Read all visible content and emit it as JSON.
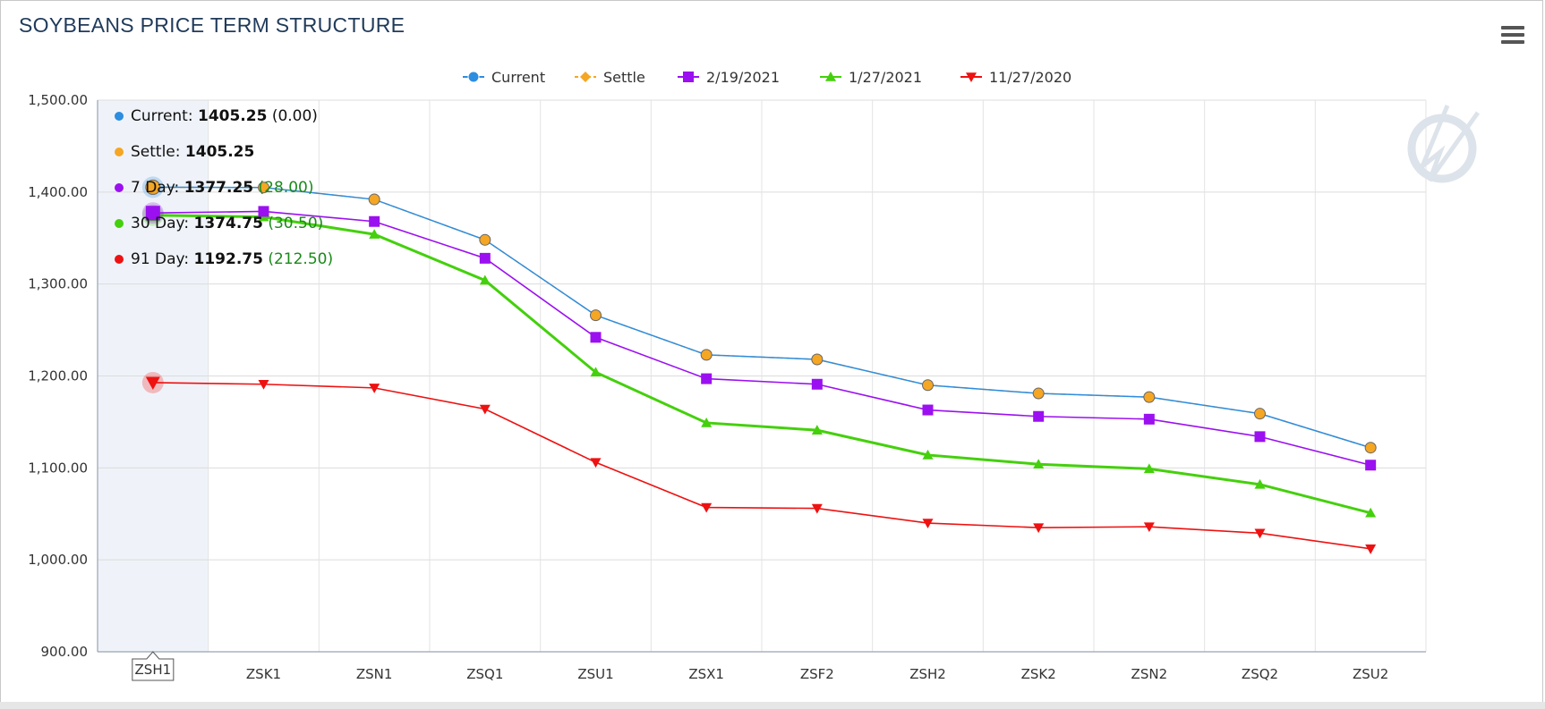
{
  "title": "SOYBEANS PRICE TERM STRUCTURE",
  "colors": {
    "current": "#2d8de0",
    "settle": "#f5a623",
    "d7": "#9b10f0",
    "d30": "#44d00c",
    "d91": "#ee1111",
    "change_green": "#1a8a1a",
    "highlight": "#eff3f9"
  },
  "legend": [
    "Current",
    "Settle",
    "2/19/2021",
    "1/27/2021",
    "11/27/2020"
  ],
  "tooltip": {
    "rows": [
      {
        "label": "Current:",
        "value": "1405.25",
        "change": "(0.00)"
      },
      {
        "label": "Settle:",
        "value": "1405.25",
        "change": ""
      },
      {
        "label": "7 Day:",
        "value": "1377.25",
        "change": "(28.00)"
      },
      {
        "label": "30 Day:",
        "value": "1374.75",
        "change": "(30.50)"
      },
      {
        "label": "91 Day:",
        "value": "1192.75",
        "change": "(212.50)"
      }
    ],
    "hovered_category": "ZSH1"
  },
  "icons": {
    "menu": "hamburger-menu-icon",
    "watermark": "logo-watermark-icon"
  },
  "chart_data": {
    "type": "line",
    "title": "SOYBEANS PRICE TERM STRUCTURE",
    "categories": [
      "ZSH1",
      "ZSK1",
      "ZSN1",
      "ZSQ1",
      "ZSU1",
      "ZSX1",
      "ZSF2",
      "ZSH2",
      "ZSK2",
      "ZSN2",
      "ZSQ2",
      "ZSU2"
    ],
    "ylim": [
      900,
      1500
    ],
    "yticks": [
      "1,500.00",
      "1,400.00",
      "1,300.00",
      "1,200.00",
      "1,100.00",
      "1,000.00",
      "900.00"
    ],
    "yticks_values": [
      1500,
      1400,
      1300,
      1200,
      1100,
      1000,
      900
    ],
    "grid": true,
    "legend_position": "top-center",
    "series": [
      {
        "name": "Current",
        "values": [
          1405.25,
          1405,
          1392,
          1348,
          1266,
          1223,
          1218,
          1190,
          1181,
          1177,
          1159,
          1122
        ]
      },
      {
        "name": "Settle",
        "values": [
          1405.25,
          1405,
          1392,
          1348,
          1266,
          1223,
          1218,
          1190,
          1181,
          1177,
          1159,
          1122
        ]
      },
      {
        "name": "2/19/2021",
        "values": [
          1377.25,
          1379,
          1368,
          1328,
          1242,
          1197,
          1191,
          1163,
          1156,
          1153,
          1134,
          1103
        ]
      },
      {
        "name": "1/27/2021",
        "values": [
          1374.75,
          1373,
          1354,
          1304,
          1204,
          1149,
          1141,
          1114,
          1104,
          1099,
          1082,
          1051
        ]
      },
      {
        "name": "11/27/2020",
        "values": [
          1192.75,
          1191,
          1187,
          1164,
          1106,
          1057,
          1056,
          1040,
          1035,
          1036,
          1029,
          1012
        ]
      }
    ]
  }
}
